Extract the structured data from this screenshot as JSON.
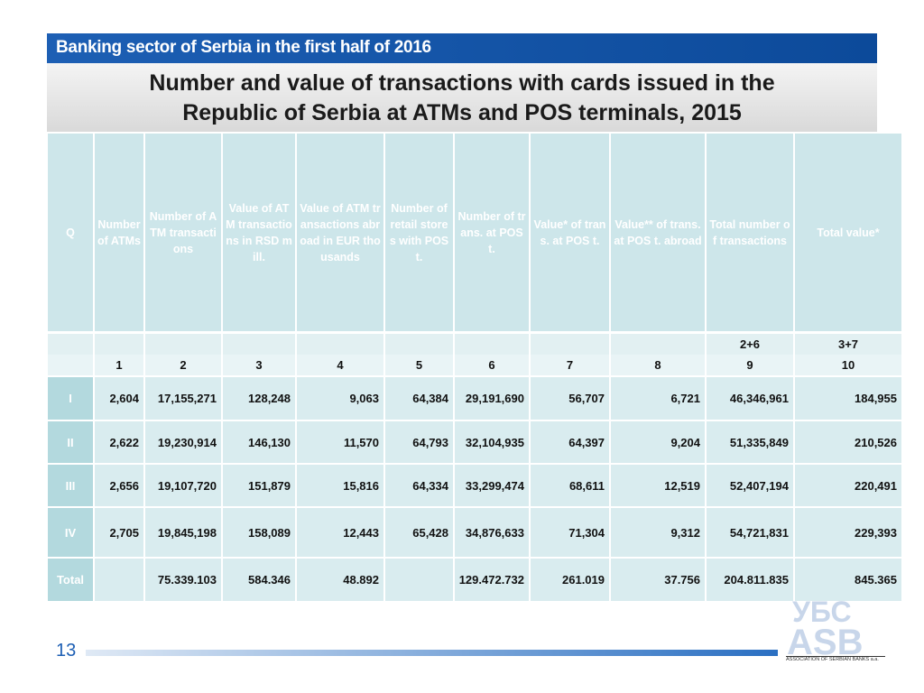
{
  "header": {
    "banner": "Banking sector of Serbia in the first half of 2016",
    "title": "Number and value of transactions with cards issued in the Republic of Serbia at ATMs and POS terminals, 2015"
  },
  "table": {
    "columns": [
      "Q",
      "Number of ATMs",
      "Number of ATM transactions",
      "Value of ATM transactions in RSD mill.",
      "Value of ATM transactions abroad in EUR thousands",
      "Number of retail stores with POS t.",
      "Number of trans. at POS t.",
      "Value* of trans. at POS t.",
      "Value** of trans.at POS t. abroad",
      "Total number of transactions",
      "Total value*"
    ],
    "formula_row": [
      null,
      null,
      null,
      null,
      null,
      null,
      null,
      null,
      null,
      "2+6",
      "3+7"
    ],
    "number_row": [
      null,
      "1",
      "2",
      "3",
      "4",
      "5",
      "6",
      "7",
      "8",
      "9",
      "10"
    ],
    "rows": [
      [
        "I",
        "2,604",
        "17,155,271",
        "128,248",
        "9,063",
        "64,384",
        "29,191,690",
        "56,707",
        "6,721",
        "46,346,961",
        "184,955"
      ],
      [
        "II",
        "2,622",
        "19,230,914",
        "146,130",
        "11,570",
        "64,793",
        "32,104,935",
        "64,397",
        "9,204",
        "51,335,849",
        "210,526"
      ],
      [
        "III",
        "2,656",
        "19,107,720",
        "151,879",
        "15,816",
        "64,334",
        "33,299,474",
        "68,611",
        "12,519",
        "52,407,194",
        "220,491"
      ],
      [
        "IV",
        "2,705",
        "19,845,198",
        "158,089",
        "12,443",
        "65,428",
        "34,876,633",
        "71,304",
        "9,312",
        "54,721,831",
        "229,393"
      ],
      [
        "Total",
        null,
        "75.339.103",
        "584.346",
        "48.892",
        null,
        "129.472.732",
        "261.019",
        "37.756",
        "204.811.835",
        "845.365"
      ]
    ]
  },
  "footer": {
    "page": "13",
    "logo_top": "УБС",
    "logo_bottom": "ASB",
    "logo_caption": "ASSOCIATION OF SERBIAN BANKS a.a."
  }
}
